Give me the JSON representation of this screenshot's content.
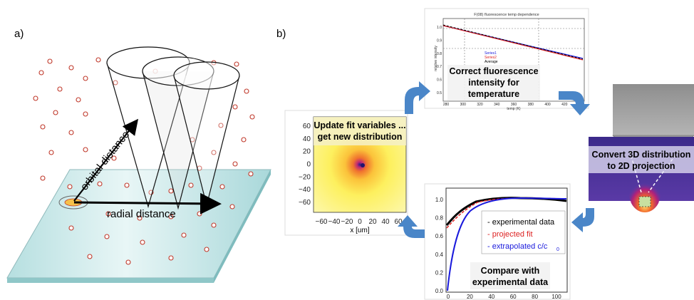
{
  "panel_a": {
    "label": "a)",
    "orbital_distance": "orbital distance",
    "radial_distance": "radial distance"
  },
  "panel_b": {
    "label": "b)",
    "fluor_plot": {
      "title": "F(08) fluorescence temp dependence",
      "ylabel": "relative intensity",
      "xlabel": "temp (K)",
      "xticks": [
        "280",
        "300",
        "320",
        "340",
        "360",
        "380",
        "400",
        "420",
        "440"
      ],
      "yticks": [
        "0.5",
        "0.6",
        "0.7",
        "0.8",
        "0.9",
        "1.0"
      ],
      "legend": [
        "Series1",
        "Series2",
        "Average"
      ],
      "caption_lines": [
        "Correct fluorescence",
        "intensity for",
        "temperature"
      ]
    },
    "distribution_plot": {
      "caption_lines": [
        "Update fit variables ...",
        "get new distribution"
      ],
      "yticks": [
        "60",
        "40",
        "20",
        "0",
        "−20",
        "−40",
        "−60"
      ],
      "xticks": [
        "−60",
        "−40",
        "−20",
        "0",
        "20",
        "40",
        "60"
      ],
      "xlabel": "x [um]"
    },
    "projection": {
      "caption_lines": [
        "Convert 3D distribution",
        "to 2D projection"
      ]
    },
    "compare_plot": {
      "yticks": [
        "1.0",
        "0.8",
        "0.6",
        "0.4",
        "0.2",
        "0.0"
      ],
      "xticks": [
        "0",
        "20",
        "40",
        "60",
        "80",
        "100"
      ],
      "legend": [
        "- experimental data",
        "- projected fit",
        "- extrapolated c/c",
        "0"
      ],
      "caption_lines": [
        "Compare with",
        "experimental data"
      ],
      "colors": {
        "experimental": "#000000",
        "fit": "#dd2222",
        "extrapolated": "#1a1adc"
      }
    }
  }
}
